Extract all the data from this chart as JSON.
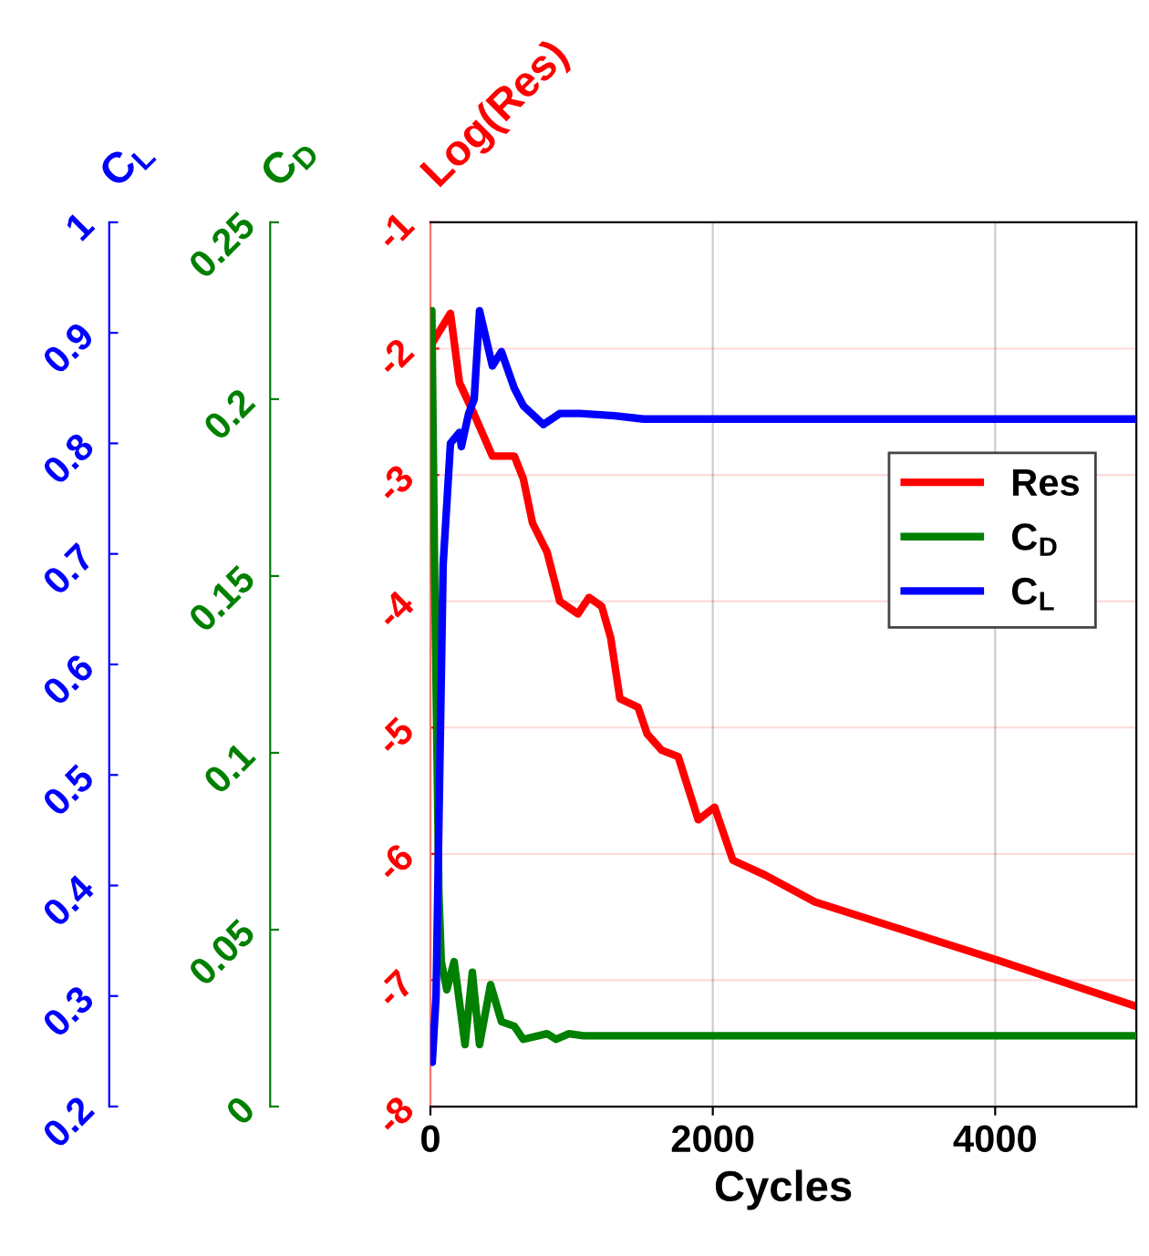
{
  "chart_data": {
    "type": "line",
    "xlabel": "Cycles",
    "ylabel": "Log(Res)",
    "y2label": "C$_{D}$",
    "y3label": "C$_{L}$",
    "xlim": [
      0,
      5000
    ],
    "xticks": [
      0,
      2000,
      4000
    ],
    "ylim": [
      -8,
      -1
    ],
    "yticks": [
      -8,
      -7,
      -6,
      -5,
      -4,
      -3,
      -2,
      -1
    ],
    "y2lim": [
      0,
      0.25
    ],
    "y2ticks": [
      0,
      0.05,
      0.1,
      0.15,
      0.2,
      0.25
    ],
    "y3lim": [
      0.2,
      1
    ],
    "y3ticks": [
      0.2,
      0.3,
      0.4,
      0.5,
      0.6,
      0.7,
      0.8,
      0.9,
      1
    ],
    "grid": true,
    "legend": "right",
    "marker": "none",
    "line_style": "solid",
    "series": [
      {
        "name": "Res",
        "color": "#ff0000",
        "axis": "y",
        "x": [
          0,
          142,
          206,
          310,
          439,
          594,
          658,
          723,
          826,
          916,
          1045,
          1123,
          1213,
          1277,
          1342,
          1471,
          1535,
          1639,
          1755,
          1897,
          2013,
          2142,
          2374,
          2723,
          4013,
          4981
        ],
        "values": [
          -1.98,
          -1.72,
          -2.27,
          -2.52,
          -2.85,
          -2.85,
          -3.03,
          -3.38,
          -3.61,
          -4.0,
          -4.1,
          -3.97,
          -4.04,
          -4.29,
          -4.77,
          -4.84,
          -5.05,
          -5.18,
          -5.23,
          -5.73,
          -5.63,
          -6.05,
          -6.17,
          -6.38,
          -6.84,
          -7.2
        ]
      },
      {
        "name": "C$_{D}$",
        "color": "#008000",
        "axis": "y2",
        "x": [
          0,
          10,
          30,
          60,
          77,
          116,
          168,
          245,
          297,
          348,
          426,
          503,
          594,
          658,
          826,
          890,
          981,
          1084,
          5000
        ],
        "values": [
          0.19,
          0.225,
          0.15,
          0.06,
          0.041,
          0.033,
          0.041,
          0.0175,
          0.038,
          0.0175,
          0.0345,
          0.024,
          0.0227,
          0.019,
          0.0206,
          0.019,
          0.0206,
          0.02,
          0.02
        ]
      },
      {
        "name": "C$_{L}$",
        "color": "#0000ff",
        "axis": "y3",
        "x": [
          0,
          13,
          40,
          90,
          142,
          206,
          219,
          271,
          310,
          348,
          439,
          503,
          594,
          658,
          800,
          916,
          1058,
          1303,
          1510,
          5000
        ],
        "values": [
          0.27,
          0.24,
          0.3,
          0.69,
          0.8,
          0.81,
          0.797,
          0.827,
          0.84,
          0.92,
          0.87,
          0.883,
          0.85,
          0.834,
          0.817,
          0.827,
          0.827,
          0.825,
          0.822,
          0.822
        ]
      }
    ]
  }
}
